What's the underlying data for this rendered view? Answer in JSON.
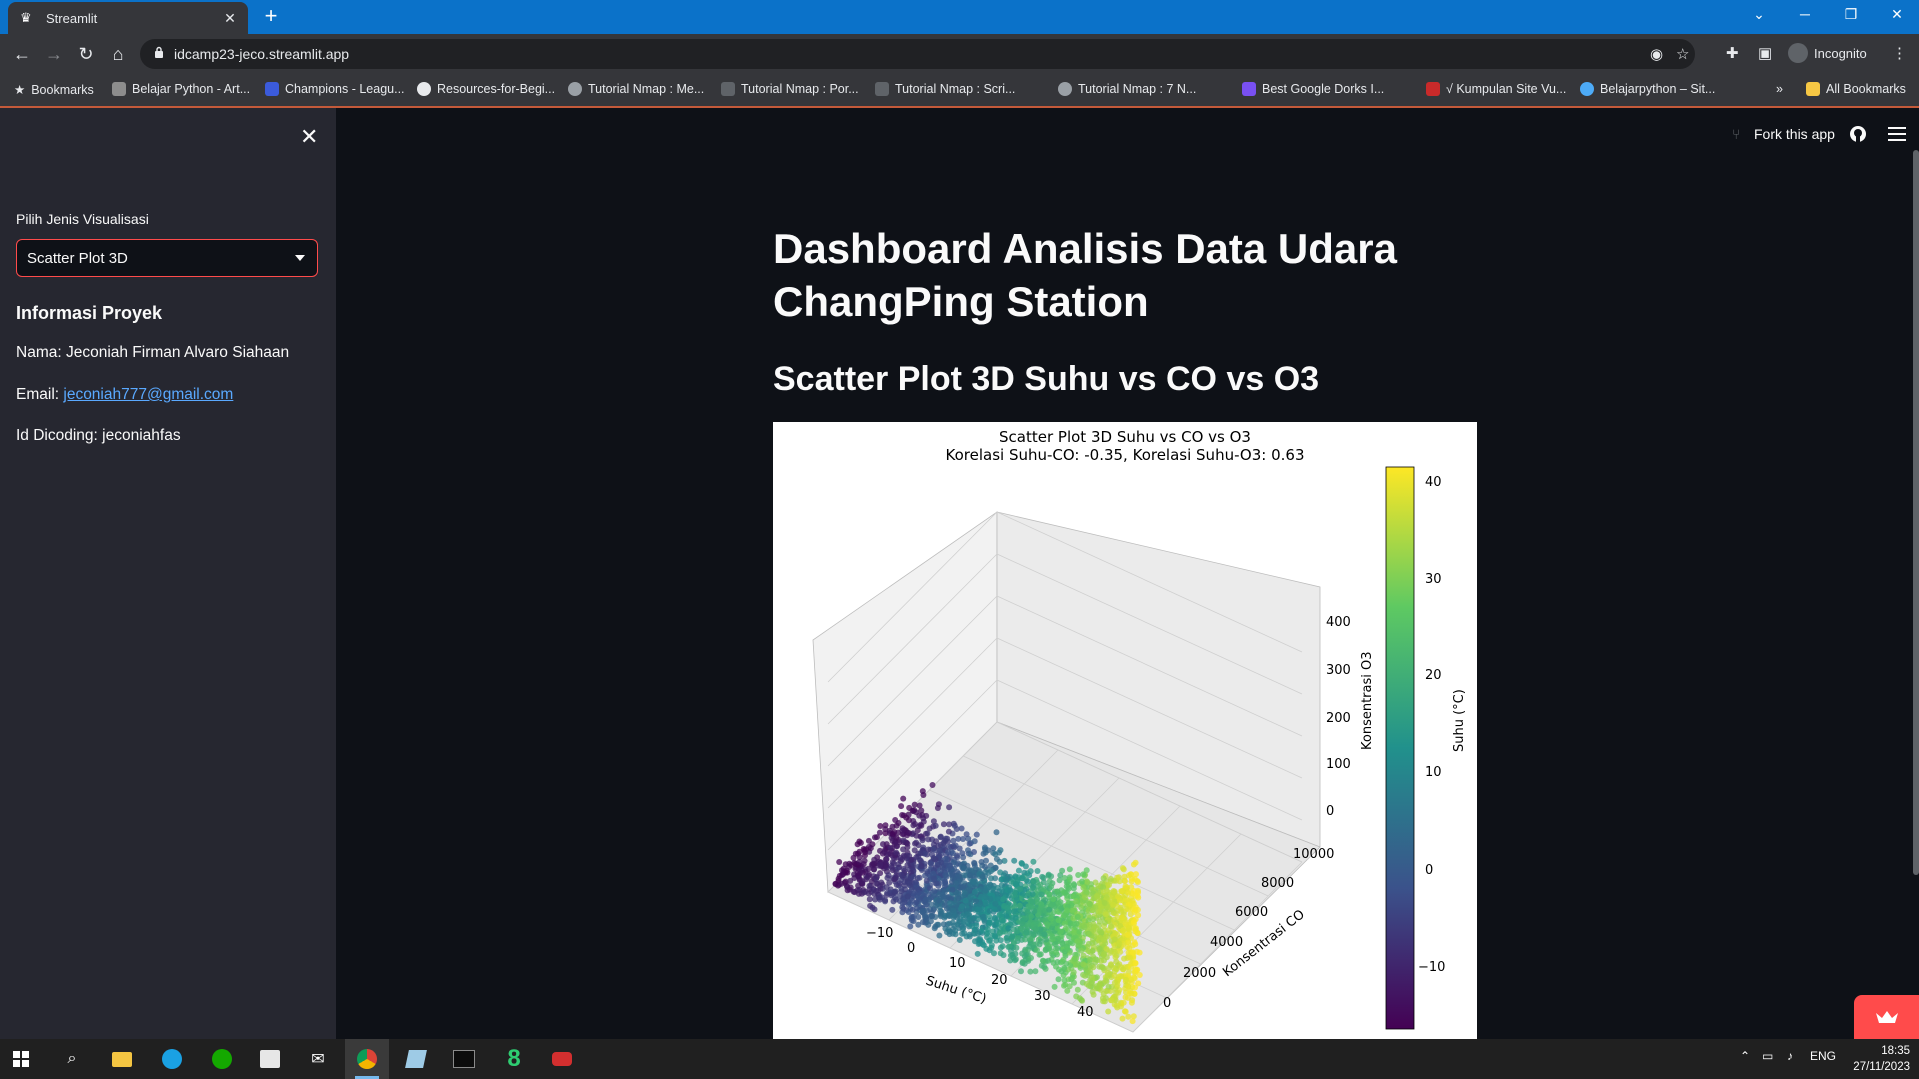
{
  "browser": {
    "tab_title": "Streamlit",
    "url": "idcamp23-jeco.streamlit.app",
    "profile_label": "Incognito",
    "bookmarks": [
      "Bookmarks",
      "Belajar Python - Art...",
      "Champions - Leagu...",
      "Resources-for-Begi...",
      "Tutorial Nmap : Me...",
      "Tutorial Nmap : Por...",
      "Tutorial Nmap : Scri...",
      "Tutorial Nmap : 7 N...",
      "Best Google Dorks I...",
      "√ Kumpulan Site Vu...",
      "Belajarpython – Sit..."
    ],
    "all_bookmarks": "All Bookmarks",
    "more_bookmarks": "»"
  },
  "sidebar": {
    "select_label": "Pilih Jenis Visualisasi",
    "select_value": "Scatter Plot 3D",
    "info_heading": "Informasi Proyek",
    "name_line": "Nama: Jeconiah Firman Alvaro Siahaan",
    "email_prefix": "Email: ",
    "email": "jeconiah777@gmail.com",
    "dicoding_line": "Id Dicoding: jeconiahfas"
  },
  "header": {
    "fork_label": "Fork this app"
  },
  "main": {
    "title": "Dashboard Analisis Data Udara ChangPing Station",
    "section_title": "Scatter Plot 3D Suhu vs CO vs O3"
  },
  "chart_data": {
    "type": "scatter",
    "title": "Scatter Plot 3D Suhu vs CO vs O3",
    "subtitle": "Korelasi Suhu-CO: -0.35, Korelasi Suhu-O3: 0.63",
    "xlabel": "Suhu (°C)",
    "ylabel": "Konsentrasi CO",
    "zlabel": "Konsentrasi O3",
    "colorbar_label": "Suhu (°C)",
    "x_ticks": [
      "−10",
      "0",
      "10",
      "20",
      "30",
      "40"
    ],
    "y_ticks": [
      "0",
      "2000",
      "4000",
      "6000",
      "8000",
      "10000"
    ],
    "z_ticks": [
      "0",
      "100",
      "200",
      "300",
      "400"
    ],
    "colorbar_ticks": [
      "40",
      "30",
      "20",
      "10",
      "0",
      "−10"
    ],
    "x_range": [
      -17,
      42
    ],
    "y_range": [
      0,
      10000
    ],
    "z_range": [
      0,
      450
    ],
    "colorbar_range": [
      -17,
      42
    ],
    "colormap": "viridis",
    "grid": true,
    "correlation_temp_co": -0.35,
    "correlation_temp_o3": 0.63
  },
  "taskbar": {
    "language": "ENG",
    "time": "18:35",
    "date": "27/11/2023"
  },
  "colors": {
    "accent": "#ff4b4b",
    "link": "#5aa9ff",
    "tabbar": "#0b72c9",
    "app_bg": "#0e1117",
    "sidebar_bg": "#262730"
  }
}
